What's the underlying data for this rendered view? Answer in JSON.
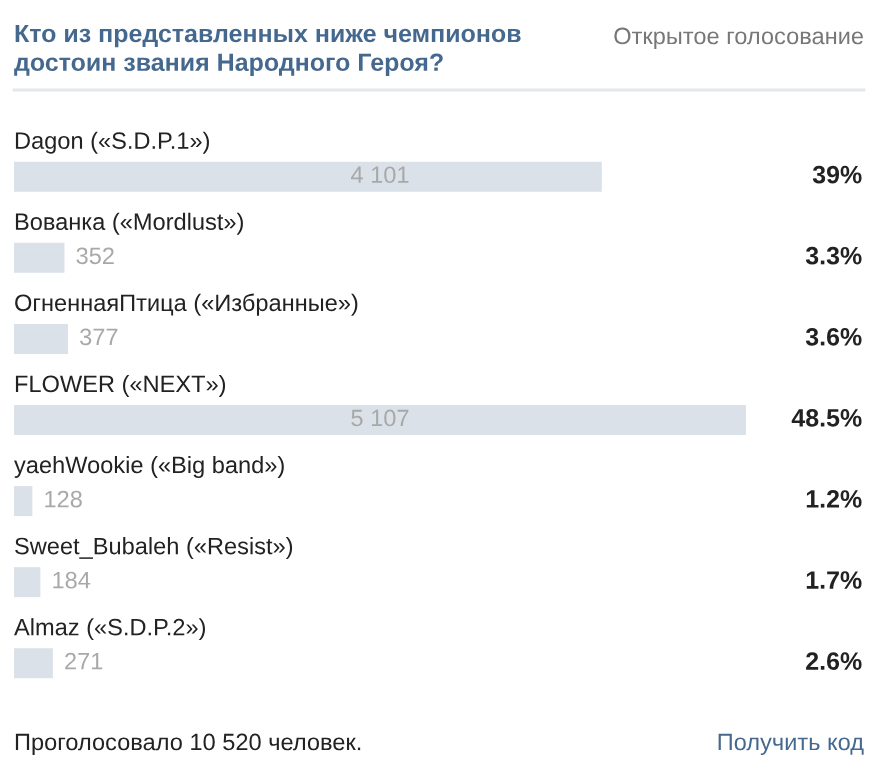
{
  "chart_data": {
    "type": "bar",
    "orientation": "horizontal",
    "title": "Кто из представленных ниже чемпионов\nдостоин звания Народного Героя?",
    "categories": [
      "Dagon («S.D.P.1»)",
      "Вованка («Mordlust»)",
      "ОгненнаяПтица («Избранные»)",
      "FLOWER («NEXT»)",
      "yaehWookie («Big band»)",
      "Sweet_Bubaleh («Resist»)",
      "Almaz («S.D.P.2»)"
    ],
    "values": [
      4101,
      352,
      377,
      5107,
      128,
      184,
      271
    ],
    "value_labels": [
      "4 101",
      "352",
      "377",
      "5 107",
      "128",
      "184",
      "271"
    ],
    "color": "#dae1e8",
    "xlim": [
      0,
      5107
    ],
    "annotations": [
      "39%",
      "3.3%",
      "3.6%",
      "48.5%",
      "1.2%",
      "1.7%",
      "2.6%",
      "Открытое голосование",
      "Проголосовало 10 520 человек.",
      "Получить код"
    ]
  }
}
